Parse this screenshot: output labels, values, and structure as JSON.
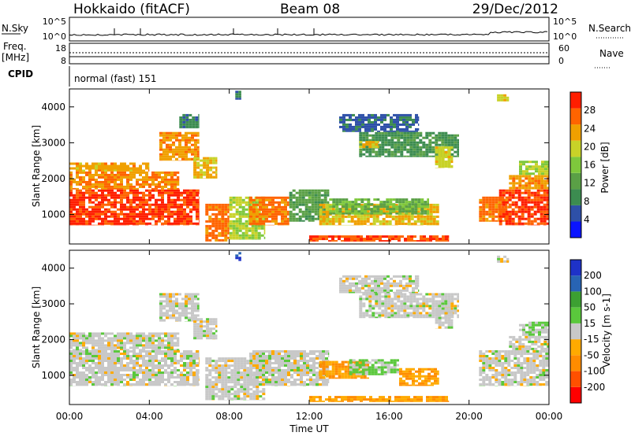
{
  "header": {
    "station": "Hokkaido (fitACF)",
    "beam": "Beam 08",
    "date": "29/Dec/2012"
  },
  "noise_panel": {
    "left_label": "N.Sky",
    "right_label": "N.Search",
    "left_ticks": [
      "10^5",
      "10^0"
    ],
    "right_ticks": [
      "10^5",
      "10^0"
    ]
  },
  "freq_panel": {
    "left_label_top": "Freq.",
    "left_label_unit": "[MHz]",
    "left_ticks": [
      "18",
      "8"
    ],
    "right_label": "Nave",
    "right_ticks": [
      "60",
      "0"
    ]
  },
  "cpid_panel": {
    "label": "CPID",
    "text": "normal (fast) 151"
  },
  "colors": {
    "power": [
      "#0a14ff",
      "#2e50a8",
      "#3c8c50",
      "#5aa046",
      "#7ec83c",
      "#c8d228",
      "#f0a000",
      "#ff6400",
      "#ff1e00"
    ],
    "velocity": [
      "#ff0000",
      "#ff5000",
      "#ff8c00",
      "#ffaa00",
      "#c8c8c8",
      "#5ac83c",
      "#3ca032",
      "#2864b4",
      "#1e32c8"
    ]
  },
  "chart_data": [
    {
      "type": "heatmap",
      "quantity": "Power",
      "colorbar_label": "Power [dB]",
      "colorbar_ticks": [
        4,
        8,
        12,
        16,
        20,
        24,
        28
      ],
      "colorbar_range": [
        0,
        32
      ],
      "xlabel": "",
      "ylabel": "Slant Range [km]",
      "yticks": [
        1000,
        2000,
        3000,
        4000
      ],
      "ylim": [
        180,
        4500
      ],
      "xlim": [
        0,
        24
      ],
      "regions": [
        {
          "t": [
            0.0,
            6.5
          ],
          "r": [
            700,
            1700
          ],
          "value": 29
        },
        {
          "t": [
            0.0,
            5.5
          ],
          "r": [
            1700,
            2200
          ],
          "value": 25
        },
        {
          "t": [
            0.0,
            4.0
          ],
          "r": [
            2200,
            2450
          ],
          "value": 23
        },
        {
          "t": [
            4.5,
            6.5
          ],
          "r": [
            2500,
            3300
          ],
          "value": 24
        },
        {
          "t": [
            6.2,
            7.4
          ],
          "r": [
            2000,
            2600
          ],
          "value": 22
        },
        {
          "t": [
            5.5,
            6.5
          ],
          "r": [
            3400,
            3800
          ],
          "value": 8
        },
        {
          "t": [
            6.8,
            8.0
          ],
          "r": [
            250,
            1300
          ],
          "value": 26
        },
        {
          "t": [
            8.0,
            9.8
          ],
          "r": [
            300,
            1500
          ],
          "value": 18
        },
        {
          "t": [
            8.3,
            8.6
          ],
          "r": [
            4200,
            4450
          ],
          "value": 8
        },
        {
          "t": [
            9.0,
            11.0
          ],
          "r": [
            700,
            1500
          ],
          "value": 26
        },
        {
          "t": [
            11.0,
            13.0
          ],
          "r": [
            800,
            1700
          ],
          "value": 12
        },
        {
          "t": [
            12.5,
            18.5
          ],
          "r": [
            700,
            1300
          ],
          "value": 22
        },
        {
          "t": [
            13.0,
            18.0
          ],
          "r": [
            1000,
            1450
          ],
          "value": 14
        },
        {
          "t": [
            12.0,
            19.0
          ],
          "r": [
            250,
            420
          ],
          "value": 28
        },
        {
          "t": [
            13.5,
            17.5
          ],
          "r": [
            3300,
            3800
          ],
          "value": 6
        },
        {
          "t": [
            14.5,
            19.5
          ],
          "r": [
            2600,
            3300
          ],
          "value": 10
        },
        {
          "t": [
            14.5,
            15.5
          ],
          "r": [
            2850,
            3050
          ],
          "value": 22
        },
        {
          "t": [
            18.3,
            19.2
          ],
          "r": [
            2300,
            2900
          ],
          "value": 20
        },
        {
          "t": [
            20.5,
            22.0
          ],
          "r": [
            800,
            1500
          ],
          "value": 26
        },
        {
          "t": [
            21.5,
            24.0
          ],
          "r": [
            700,
            1700
          ],
          "value": 29
        },
        {
          "t": [
            22.0,
            24.0
          ],
          "r": [
            1700,
            2100
          ],
          "value": 24
        },
        {
          "t": [
            22.5,
            24.0
          ],
          "r": [
            2100,
            2500
          ],
          "value": 18
        },
        {
          "t": [
            21.4,
            22.0
          ],
          "r": [
            4150,
            4350
          ],
          "value": 20
        }
      ]
    },
    {
      "type": "heatmap",
      "quantity": "Velocity",
      "colorbar_label": "Velocity [m s-1]",
      "colorbar_ticks": [
        -200,
        -100,
        -50,
        -15,
        15,
        50,
        100,
        200
      ],
      "colorbar_range": [
        -250,
        250
      ],
      "xlabel": "Time UT",
      "ylabel": "Slant Range [km]",
      "xticks": [
        "00:00",
        "04:00",
        "08:00",
        "12:00",
        "16:00",
        "20:00",
        "00:00"
      ],
      "yticks": [
        1000,
        2000,
        3000,
        4000
      ],
      "ylim": [
        180,
        4500
      ],
      "xlim": [
        0,
        24
      ],
      "regions": [
        {
          "t": [
            0.0,
            6.5
          ],
          "r": [
            700,
            1700
          ],
          "value": 0
        },
        {
          "t": [
            0.0,
            5.5
          ],
          "r": [
            1700,
            2200
          ],
          "value": 0
        },
        {
          "t": [
            4.5,
            6.5
          ],
          "r": [
            2500,
            3300
          ],
          "value": 0
        },
        {
          "t": [
            6.2,
            7.4
          ],
          "r": [
            2000,
            2600
          ],
          "value": 0
        },
        {
          "t": [
            6.8,
            9.8
          ],
          "r": [
            300,
            1500
          ],
          "value": 0
        },
        {
          "t": [
            8.3,
            8.6
          ],
          "r": [
            4200,
            4450
          ],
          "value": 200
        },
        {
          "t": [
            9.0,
            13.0
          ],
          "r": [
            700,
            1700
          ],
          "value": 0
        },
        {
          "t": [
            12.5,
            15.0
          ],
          "r": [
            900,
            1400
          ],
          "value": -80
        },
        {
          "t": [
            14.0,
            16.5
          ],
          "r": [
            1000,
            1450
          ],
          "value": 40
        },
        {
          "t": [
            16.5,
            18.5
          ],
          "r": [
            700,
            1200
          ],
          "value": -80
        },
        {
          "t": [
            12.0,
            19.0
          ],
          "r": [
            250,
            420
          ],
          "value": -80
        },
        {
          "t": [
            13.5,
            17.5
          ],
          "r": [
            3300,
            3800
          ],
          "value": 0
        },
        {
          "t": [
            14.5,
            19.5
          ],
          "r": [
            2600,
            3300
          ],
          "value": 0
        },
        {
          "t": [
            18.3,
            19.2
          ],
          "r": [
            2300,
            2900
          ],
          "value": 0
        },
        {
          "t": [
            20.5,
            24.0
          ],
          "r": [
            700,
            1700
          ],
          "value": 0
        },
        {
          "t": [
            22.0,
            24.0
          ],
          "r": [
            1700,
            2100
          ],
          "value": 0
        },
        {
          "t": [
            22.5,
            24.0
          ],
          "r": [
            2100,
            2500
          ],
          "value": 30
        },
        {
          "t": [
            21.4,
            22.0
          ],
          "r": [
            4150,
            4350
          ],
          "value": 0
        }
      ]
    }
  ]
}
